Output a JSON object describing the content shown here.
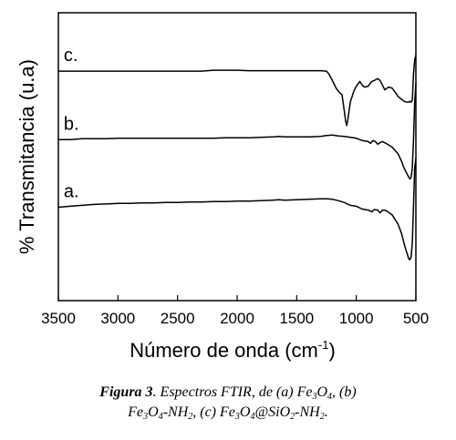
{
  "chart_data": {
    "type": "line",
    "title": "",
    "xlabel": "Número de onda (cm",
    "xlabel_sup": "-1",
    "xlabel_close": ")",
    "ylabel": "% Transmitancia (u.a)",
    "xlim": [
      3500,
      500
    ],
    "x_reversed": true,
    "xticks": [
      3500,
      3000,
      2500,
      2000,
      1500,
      1000,
      500
    ],
    "xtick_labels": [
      "3500",
      "3000",
      "2500",
      "2000",
      "1500",
      "1000",
      "500"
    ],
    "yticks_shown": false,
    "grid": false,
    "series": [
      {
        "name": "a.",
        "x": [
          3500,
          3400,
          3300,
          3200,
          3100,
          3000,
          2900,
          2800,
          2700,
          2600,
          2500,
          2400,
          2300,
          2200,
          2100,
          2000,
          1900,
          1800,
          1700,
          1650,
          1600,
          1500,
          1400,
          1300,
          1250,
          1200,
          1150,
          1100,
          1050,
          1000,
          950,
          900,
          870,
          850,
          820,
          800,
          780,
          750,
          700,
          650,
          620,
          600,
          585,
          570,
          560,
          550,
          540,
          530,
          520,
          510,
          500
        ],
        "y": [
          0.18,
          0.19,
          0.2,
          0.21,
          0.215,
          0.22,
          0.22,
          0.225,
          0.225,
          0.23,
          0.23,
          0.235,
          0.235,
          0.24,
          0.24,
          0.245,
          0.245,
          0.25,
          0.255,
          0.26,
          0.255,
          0.26,
          0.265,
          0.27,
          0.27,
          0.265,
          0.25,
          0.23,
          0.2,
          0.19,
          0.16,
          0.15,
          0.13,
          0.155,
          0.15,
          0.12,
          0.15,
          0.145,
          0.1,
          0.0,
          -0.1,
          -0.2,
          -0.27,
          -0.33,
          -0.37,
          -0.38,
          -0.35,
          -0.2,
          0.2,
          0.6,
          0.7
        ]
      },
      {
        "name": "b.",
        "x": [
          3500,
          3400,
          3300,
          3200,
          3100,
          3000,
          2900,
          2800,
          2700,
          2600,
          2500,
          2400,
          2300,
          2200,
          2100,
          2000,
          1900,
          1800,
          1700,
          1650,
          1600,
          1500,
          1400,
          1300,
          1250,
          1200,
          1150,
          1100,
          1050,
          1000,
          950,
          900,
          880,
          860,
          840,
          820,
          800,
          780,
          750,
          700,
          650,
          620,
          600,
          580,
          560,
          550,
          540,
          530,
          520,
          510,
          500
        ],
        "y": [
          0.9,
          0.9,
          0.91,
          0.91,
          0.91,
          0.915,
          0.915,
          0.915,
          0.915,
          0.915,
          0.915,
          0.915,
          0.915,
          0.915,
          0.92,
          0.92,
          0.92,
          0.925,
          0.93,
          0.935,
          0.93,
          0.93,
          0.93,
          0.935,
          0.945,
          0.95,
          0.94,
          0.935,
          0.925,
          0.915,
          0.89,
          0.88,
          0.86,
          0.89,
          0.88,
          0.85,
          0.87,
          0.88,
          0.86,
          0.82,
          0.75,
          0.67,
          0.6,
          0.55,
          0.5,
          0.48,
          0.5,
          0.6,
          0.9,
          1.3,
          1.5
        ]
      },
      {
        "name": "c.",
        "x": [
          3500,
          3400,
          3300,
          3200,
          3100,
          3000,
          2900,
          2800,
          2700,
          2600,
          2500,
          2400,
          2300,
          2200,
          2100,
          2000,
          1900,
          1800,
          1700,
          1600,
          1500,
          1400,
          1300,
          1250,
          1230,
          1200,
          1170,
          1140,
          1120,
          1100,
          1090,
          1080,
          1070,
          1050,
          1020,
          1000,
          970,
          950,
          930,
          900,
          870,
          850,
          820,
          800,
          780,
          760,
          730,
          700,
          670,
          650,
          620,
          600,
          580,
          560,
          550,
          540,
          530,
          520,
          510,
          500
        ],
        "y": [
          1.63,
          1.63,
          1.63,
          1.63,
          1.63,
          1.63,
          1.63,
          1.63,
          1.63,
          1.63,
          1.63,
          1.63,
          1.63,
          1.64,
          1.64,
          1.64,
          1.635,
          1.635,
          1.635,
          1.635,
          1.635,
          1.635,
          1.635,
          1.63,
          1.6,
          1.53,
          1.45,
          1.4,
          1.38,
          1.2,
          1.1,
          1.05,
          1.12,
          1.3,
          1.42,
          1.47,
          1.52,
          1.48,
          1.46,
          1.47,
          1.52,
          1.53,
          1.55,
          1.53,
          1.48,
          1.43,
          1.46,
          1.45,
          1.4,
          1.36,
          1.33,
          1.31,
          1.3,
          1.3,
          1.31,
          1.3,
          1.32,
          1.6,
          1.75,
          1.8
        ]
      }
    ]
  },
  "caption": {
    "label": "Figura 3",
    "line1_parts": [
      ". Espectros FTIR, de (a) Fe",
      "3",
      "O",
      "4",
      ", (b)"
    ],
    "line2_parts": [
      "Fe",
      "3",
      "O",
      "4",
      "-NH",
      "2",
      ", (c) Fe",
      "3",
      "O",
      "4",
      "@SiO",
      "2",
      "-NH",
      "2",
      "."
    ]
  }
}
